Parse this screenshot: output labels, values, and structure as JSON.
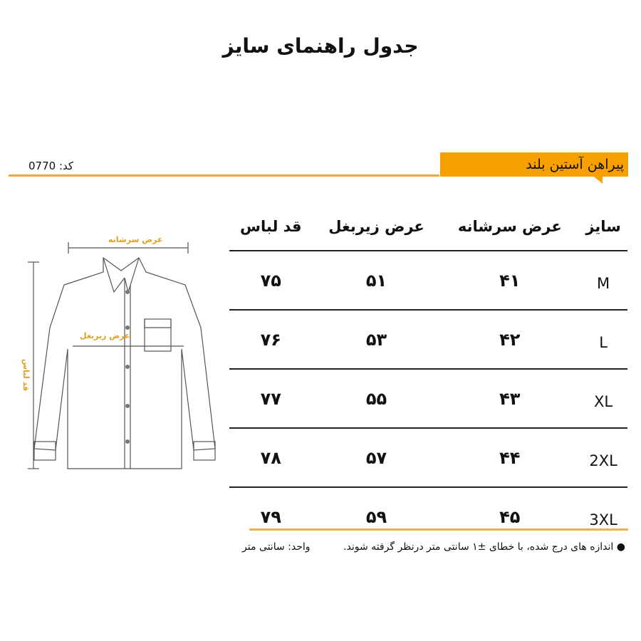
{
  "title": "جدول راهنمای سایز",
  "product": "پیراهن آستین بلند",
  "code": "کد: 0770",
  "table": {
    "headers": [
      "سایز",
      "عرض سرشانه",
      "عرض زیربغل",
      "قد لباس"
    ],
    "rows": [
      [
        "M",
        "۴۱",
        "۵۱",
        "۷۵"
      ],
      [
        "L",
        "۴۲",
        "۵۳",
        "۷۶"
      ],
      [
        "XL",
        "۴۳",
        "۵۵",
        "۷۷"
      ],
      [
        "2XL",
        "۴۴",
        "۵۷",
        "۷۸"
      ],
      [
        "3XL",
        "۴۵",
        "۵۹",
        "۷۹"
      ]
    ]
  },
  "diagram": {
    "shoulder": "عرض سرشانه",
    "chest": "عرض زیربغل",
    "length": "قد لباس"
  },
  "note": "اندازه های درج شده، با خطای ±۱ سانتی متر درنظر گرفته شوند.",
  "unit": "واحد: سانتی متر",
  "colors": {
    "accent": "#f7a000"
  }
}
